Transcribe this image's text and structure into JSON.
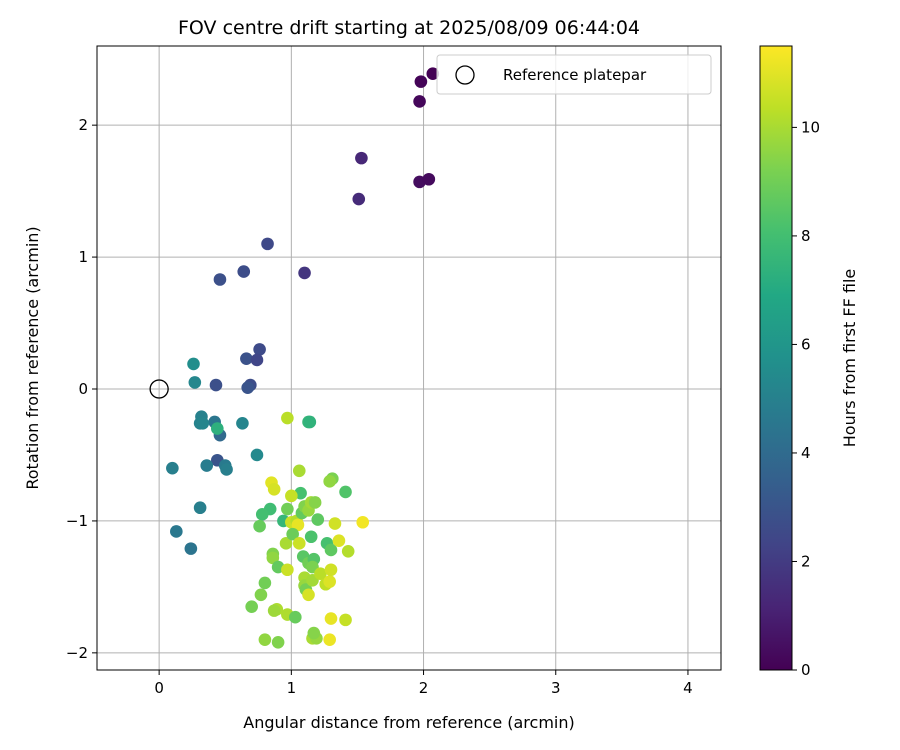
{
  "chart_data": {
    "type": "scatter",
    "title": "FOV centre drift starting at 2025/08/09 06:44:04",
    "xlabel": "Angular distance from reference (arcmin)",
    "ylabel": "Rotation from reference (arcmin)",
    "xlim": [
      -0.47,
      4.25
    ],
    "ylim": [
      -2.13,
      2.6
    ],
    "x_ticks": [
      0,
      1,
      2,
      3,
      4
    ],
    "y_ticks": [
      -2,
      -1,
      0,
      1,
      2
    ],
    "grid": true,
    "legend": {
      "entries": [
        "Reference platepar"
      ],
      "position": "top-right"
    },
    "reference_point": {
      "x": 0,
      "y": 0
    },
    "colorbar": {
      "label": "Hours from first FF file",
      "range": [
        0,
        11.5
      ],
      "ticks": [
        0,
        2,
        4,
        6,
        8,
        10
      ],
      "colormap": "viridis"
    },
    "points": [
      {
        "x": 2.07,
        "y": 2.39,
        "t": 0.0
      },
      {
        "x": 1.98,
        "y": 2.33,
        "t": 0.1
      },
      {
        "x": 1.97,
        "y": 2.18,
        "t": 0.2
      },
      {
        "x": 1.97,
        "y": 1.57,
        "t": 0.4
      },
      {
        "x": 2.04,
        "y": 1.59,
        "t": 0.3
      },
      {
        "x": 1.53,
        "y": 1.75,
        "t": 1.3
      },
      {
        "x": 1.51,
        "y": 1.44,
        "t": 1.4
      },
      {
        "x": 1.1,
        "y": 0.88,
        "t": 1.8
      },
      {
        "x": 0.82,
        "y": 1.1,
        "t": 2.5
      },
      {
        "x": 0.64,
        "y": 0.89,
        "t": 2.7
      },
      {
        "x": 0.46,
        "y": 0.83,
        "t": 2.8
      },
      {
        "x": 0.76,
        "y": 0.3,
        "t": 2.6
      },
      {
        "x": 0.66,
        "y": 0.23,
        "t": 2.9
      },
      {
        "x": 0.74,
        "y": 0.22,
        "t": 2.4
      },
      {
        "x": 0.69,
        "y": 0.03,
        "t": 2.7
      },
      {
        "x": 0.67,
        "y": 0.01,
        "t": 3.0
      },
      {
        "x": 0.43,
        "y": 0.03,
        "t": 2.8
      },
      {
        "x": 0.44,
        "y": -0.54,
        "t": 3.0
      },
      {
        "x": 0.46,
        "y": -0.35,
        "t": 3.9
      },
      {
        "x": 0.42,
        "y": -0.25,
        "t": 4.5
      },
      {
        "x": 0.32,
        "y": -0.21,
        "t": 5.0
      },
      {
        "x": 0.31,
        "y": -0.26,
        "t": 5.1
      },
      {
        "x": 0.33,
        "y": -0.26,
        "t": 5.2
      },
      {
        "x": 0.26,
        "y": 0.19,
        "t": 5.6
      },
      {
        "x": 0.27,
        "y": 0.05,
        "t": 5.3
      },
      {
        "x": 0.1,
        "y": -0.6,
        "t": 4.9
      },
      {
        "x": 0.13,
        "y": -1.08,
        "t": 4.6
      },
      {
        "x": 0.24,
        "y": -1.21,
        "t": 4.4
      },
      {
        "x": 0.31,
        "y": -0.9,
        "t": 4.9
      },
      {
        "x": 0.36,
        "y": -0.58,
        "t": 4.8
      },
      {
        "x": 0.5,
        "y": -0.58,
        "t": 4.7
      },
      {
        "x": 0.51,
        "y": -0.61,
        "t": 4.9
      },
      {
        "x": 0.63,
        "y": -0.26,
        "t": 5.2
      },
      {
        "x": 0.74,
        "y": -0.5,
        "t": 5.4
      },
      {
        "x": 0.44,
        "y": -0.3,
        "t": 7.3
      },
      {
        "x": 0.97,
        "y": -0.22,
        "t": 10.3
      },
      {
        "x": 1.13,
        "y": -0.25,
        "t": 7.6
      },
      {
        "x": 1.14,
        "y": -0.25,
        "t": 7.4
      },
      {
        "x": 1.06,
        "y": -0.62,
        "t": 10.0
      },
      {
        "x": 1.07,
        "y": -0.79,
        "t": 8.1
      },
      {
        "x": 1.0,
        "y": -0.81,
        "t": 10.5
      },
      {
        "x": 0.85,
        "y": -0.71,
        "t": 11.0
      },
      {
        "x": 0.87,
        "y": -0.76,
        "t": 10.8
      },
      {
        "x": 0.84,
        "y": -0.91,
        "t": 7.9
      },
      {
        "x": 0.78,
        "y": -0.95,
        "t": 8.0
      },
      {
        "x": 0.76,
        "y": -1.04,
        "t": 8.8
      },
      {
        "x": 0.94,
        "y": -1.0,
        "t": 7.6
      },
      {
        "x": 0.97,
        "y": -0.91,
        "t": 9.0
      },
      {
        "x": 1.0,
        "y": -1.01,
        "t": 10.6
      },
      {
        "x": 1.04,
        "y": -1.0,
        "t": 10.2
      },
      {
        "x": 1.05,
        "y": -1.03,
        "t": 11.1
      },
      {
        "x": 1.08,
        "y": -0.94,
        "t": 8.7
      },
      {
        "x": 1.1,
        "y": -0.89,
        "t": 9.3
      },
      {
        "x": 1.13,
        "y": -0.92,
        "t": 9.7
      },
      {
        "x": 1.15,
        "y": -0.86,
        "t": 9.9
      },
      {
        "x": 1.18,
        "y": -0.86,
        "t": 9.4
      },
      {
        "x": 1.2,
        "y": -0.99,
        "t": 8.6
      },
      {
        "x": 1.15,
        "y": -1.12,
        "t": 8.2
      },
      {
        "x": 1.27,
        "y": -1.17,
        "t": 8.1
      },
      {
        "x": 1.3,
        "y": -1.22,
        "t": 8.6
      },
      {
        "x": 1.33,
        "y": -1.02,
        "t": 10.7
      },
      {
        "x": 1.36,
        "y": -1.15,
        "t": 10.9
      },
      {
        "x": 1.31,
        "y": -0.68,
        "t": 9.2
      },
      {
        "x": 1.29,
        "y": -0.7,
        "t": 9.6
      },
      {
        "x": 1.41,
        "y": -0.78,
        "t": 8.3
      },
      {
        "x": 1.43,
        "y": -1.23,
        "t": 10.2
      },
      {
        "x": 1.54,
        "y": -1.01,
        "t": 11.3
      },
      {
        "x": 0.96,
        "y": -1.17,
        "t": 10.0
      },
      {
        "x": 1.01,
        "y": -1.1,
        "t": 8.9
      },
      {
        "x": 1.06,
        "y": -1.17,
        "t": 10.6
      },
      {
        "x": 1.09,
        "y": -1.27,
        "t": 8.5
      },
      {
        "x": 1.13,
        "y": -1.32,
        "t": 9.0
      },
      {
        "x": 1.17,
        "y": -1.29,
        "t": 8.4
      },
      {
        "x": 1.16,
        "y": -1.35,
        "t": 9.2
      },
      {
        "x": 0.86,
        "y": -1.25,
        "t": 9.3
      },
      {
        "x": 0.86,
        "y": -1.28,
        "t": 9.6
      },
      {
        "x": 0.9,
        "y": -1.35,
        "t": 8.7
      },
      {
        "x": 0.97,
        "y": -1.37,
        "t": 10.6
      },
      {
        "x": 0.8,
        "y": -1.47,
        "t": 9.0
      },
      {
        "x": 0.77,
        "y": -1.56,
        "t": 9.3
      },
      {
        "x": 0.7,
        "y": -1.65,
        "t": 9.1
      },
      {
        "x": 0.89,
        "y": -1.67,
        "t": 10.1
      },
      {
        "x": 0.87,
        "y": -1.68,
        "t": 9.8
      },
      {
        "x": 0.97,
        "y": -1.71,
        "t": 10.1
      },
      {
        "x": 1.03,
        "y": -1.73,
        "t": 8.8
      },
      {
        "x": 0.8,
        "y": -1.9,
        "t": 9.6
      },
      {
        "x": 0.9,
        "y": -1.92,
        "t": 9.3
      },
      {
        "x": 1.1,
        "y": -1.43,
        "t": 10.0
      },
      {
        "x": 1.1,
        "y": -1.49,
        "t": 9.7
      },
      {
        "x": 1.11,
        "y": -1.52,
        "t": 9.1
      },
      {
        "x": 1.13,
        "y": -1.56,
        "t": 10.8
      },
      {
        "x": 1.16,
        "y": -1.45,
        "t": 9.9
      },
      {
        "x": 1.22,
        "y": -1.4,
        "t": 10.3
      },
      {
        "x": 1.26,
        "y": -1.48,
        "t": 10.4
      },
      {
        "x": 1.29,
        "y": -1.46,
        "t": 10.9
      },
      {
        "x": 1.3,
        "y": -1.37,
        "t": 10.7
      },
      {
        "x": 1.3,
        "y": -1.74,
        "t": 11.1
      },
      {
        "x": 1.41,
        "y": -1.75,
        "t": 10.5
      },
      {
        "x": 1.16,
        "y": -1.89,
        "t": 10.0
      },
      {
        "x": 1.19,
        "y": -1.89,
        "t": 9.7
      },
      {
        "x": 1.29,
        "y": -1.9,
        "t": 11.2
      },
      {
        "x": 1.17,
        "y": -1.85,
        "t": 9.4
      }
    ]
  }
}
